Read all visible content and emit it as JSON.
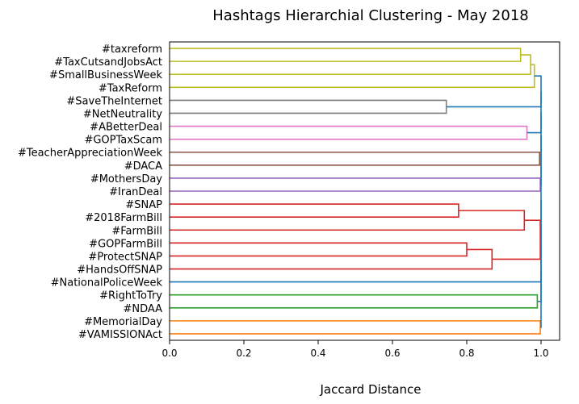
{
  "chart_data": {
    "type": "dendrogram",
    "title": "Hashtags Hierarchial Clustering - May 2018",
    "xlabel": "Jaccard Distance",
    "ylabel": "",
    "xlim": [
      0.0,
      1.05
    ],
    "xticks": [
      "0.0",
      "0.2",
      "0.4",
      "0.6",
      "0.8",
      "1.0"
    ],
    "xtick_values": [
      0.0,
      0.2,
      0.4,
      0.6,
      0.8,
      1.0
    ],
    "grid": false,
    "leaves": [
      "#taxreform",
      "#TaxCutsandJobsAct",
      "#SmallBusinessWeek",
      "#TaxReform",
      "#SaveTheInternet",
      "#NetNeutrality",
      "#ABetterDeal",
      "#GOPTaxScam",
      "#TeacherAppreciationWeek",
      "#DACA",
      "#MothersDay",
      "#IranDeal",
      "#SNAP",
      "#2018FarmBill",
      "#FarmBill",
      "#GOPFarmBill",
      "#ProtectSNAP",
      "#HandsOffSNAP",
      "#NationalPoliceWeek",
      "#RightToTry",
      "#NDAA",
      "#MemorialDay",
      "#VAMISSIONAct"
    ],
    "links": [
      {
        "a": "L0",
        "b": "L1",
        "height": 0.945,
        "color": "#bcbd22"
      },
      {
        "a": "N0",
        "b": "L2",
        "height": 0.972,
        "color": "#bcbd22"
      },
      {
        "a": "N1",
        "b": "L3",
        "height": 0.982,
        "color": "#bcbd22"
      },
      {
        "a": "L4",
        "b": "L5",
        "height": 0.745,
        "color": "#7f7f7f"
      },
      {
        "a": "L6",
        "b": "L7",
        "height": 0.962,
        "color": "#e377c2"
      },
      {
        "a": "L8",
        "b": "L9",
        "height": 0.996,
        "color": "#8c564b"
      },
      {
        "a": "L10",
        "b": "L11",
        "height": 0.998,
        "color": "#9467bd"
      },
      {
        "a": "L12",
        "b": "L13",
        "height": 0.778,
        "color": "#d62728"
      },
      {
        "a": "N7",
        "b": "L14",
        "height": 0.955,
        "color": "#d62728"
      },
      {
        "a": "L15",
        "b": "L16",
        "height": 0.8,
        "color": "#d62728"
      },
      {
        "a": "N9",
        "b": "L17",
        "height": 0.868,
        "color": "#d62728"
      },
      {
        "a": "N8",
        "b": "N10",
        "height": 0.998,
        "color": "#d62728"
      },
      {
        "a": "L19",
        "b": "L20",
        "height": 0.99,
        "color": "#2ca02c"
      },
      {
        "a": "L21",
        "b": "L22",
        "height": 0.998,
        "color": "#ff7f0e"
      },
      {
        "a": "N2",
        "b": "N3",
        "height": 1.0,
        "color": "#1f77b4"
      },
      {
        "a": "N14",
        "b": "N4",
        "height": 1.0,
        "color": "#1f77b4"
      },
      {
        "a": "N15",
        "b": "N5",
        "height": 1.0,
        "color": "#1f77b4"
      },
      {
        "a": "N16",
        "b": "N6",
        "height": 1.0,
        "color": "#1f77b4"
      },
      {
        "a": "N17",
        "b": "N11",
        "height": 1.0,
        "color": "#1f77b4"
      },
      {
        "a": "N18",
        "b": "L18",
        "height": 1.0,
        "color": "#1f77b4"
      },
      {
        "a": "N19",
        "b": "N12",
        "height": 1.0,
        "color": "#1f77b4"
      },
      {
        "a": "N20",
        "b": "N13",
        "height": 1.0,
        "color": "#1f77b4"
      }
    ]
  }
}
